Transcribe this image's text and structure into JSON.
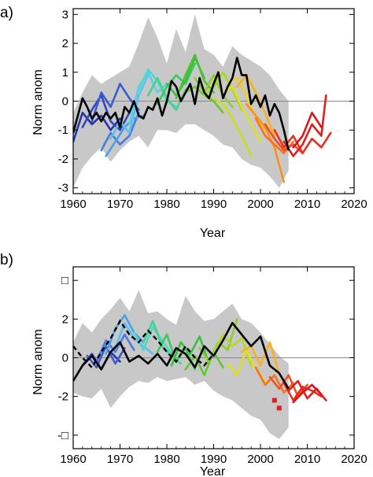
{
  "chart_data": [
    {
      "type": "line",
      "panel_label": "a)",
      "xlabel": "Year",
      "ylabel": "Norm anom",
      "xlim": [
        1960,
        2020
      ],
      "ylim": [
        -3.2,
        3.2
      ],
      "xticks": [
        1960,
        1970,
        1980,
        1990,
        2000,
        2010,
        2020
      ],
      "yticks": [
        -3,
        -2,
        -1,
        0,
        1,
        2,
        3
      ],
      "zero_line": true,
      "envelope": {
        "color": "#c8c8c8",
        "x": [
          1960,
          1962,
          1964,
          1966,
          1968,
          1970,
          1972,
          1974,
          1976,
          1978,
          1980,
          1982,
          1984,
          1986,
          1988,
          1990,
          1992,
          1994,
          1996,
          1998,
          2000,
          2002,
          2004,
          2006
        ],
        "upper": [
          -0.4,
          0.3,
          0.9,
          0.6,
          0.8,
          1.0,
          1.2,
          2.0,
          2.9,
          2.2,
          1.3,
          2.5,
          1.7,
          3.0,
          1.8,
          1.6,
          1.2,
          1.9,
          1.6,
          1.4,
          1.2,
          0.9,
          0.4,
          0.0
        ],
        "lower": [
          -3.0,
          -2.3,
          -1.9,
          -1.6,
          -2.1,
          -1.7,
          -1.4,
          -1.2,
          -1.6,
          -1.0,
          -1.0,
          -1.1,
          -0.8,
          -0.8,
          -1.0,
          -1.2,
          -1.5,
          -1.6,
          -2.0,
          -2.2,
          -2.3,
          -2.6,
          -3.0,
          -2.4
        ]
      },
      "ensemble_series": [
        {
          "color": "#2a35a8",
          "x": [
            1960,
            1962,
            1964,
            1966,
            1968,
            1970
          ],
          "values": [
            -1.4,
            -0.4,
            -0.8,
            -0.5,
            -1.0,
            -0.6
          ]
        },
        {
          "color": "#3047c0",
          "x": [
            1962,
            1964,
            1966,
            1968,
            1970,
            1972
          ],
          "values": [
            -0.9,
            -0.3,
            0.2,
            -0.7,
            -1.0,
            -0.4
          ]
        },
        {
          "color": "#3b5bd0",
          "x": [
            1964,
            1966,
            1968,
            1970,
            1972,
            1974
          ],
          "values": [
            -0.7,
            0.3,
            -0.2,
            0.6,
            0.1,
            -0.3
          ]
        },
        {
          "color": "#4a7ae0",
          "x": [
            1966,
            1968,
            1970,
            1972,
            1974
          ],
          "values": [
            -1.7,
            -1.1,
            -1.5,
            -1.2,
            -0.4
          ]
        },
        {
          "color": "#4aa0e8",
          "x": [
            1967,
            1969,
            1971,
            1973,
            1975
          ],
          "values": [
            -1.9,
            -1.4,
            -0.9,
            -0.6,
            -0.5
          ]
        },
        {
          "color": "#5bc0f0",
          "x": [
            1968,
            1970,
            1972,
            1974,
            1976
          ],
          "values": [
            -1.3,
            -0.7,
            -1.1,
            0.2,
            0.9
          ]
        },
        {
          "color": "#5ad0e8",
          "x": [
            1972,
            1974,
            1976,
            1978,
            1980
          ],
          "values": [
            -0.8,
            0.5,
            1.0,
            0.3,
            0.6
          ]
        },
        {
          "color": "#50d8c8",
          "x": [
            1974,
            1976,
            1978,
            1980,
            1982
          ],
          "values": [
            0.4,
            1.1,
            0.7,
            0.0,
            -0.2
          ]
        },
        {
          "color": "#48d090",
          "x": [
            1976,
            1978,
            1980,
            1982,
            1984
          ],
          "values": [
            0.2,
            0.8,
            0.1,
            -0.3,
            0.4
          ]
        },
        {
          "color": "#40c860",
          "x": [
            1978,
            1980,
            1982,
            1984,
            1986
          ],
          "values": [
            -0.1,
            0.5,
            0.9,
            0.6,
            1.3
          ]
        },
        {
          "color": "#38c040",
          "x": [
            1980,
            1982,
            1984,
            1986,
            1988
          ],
          "values": [
            0.6,
            0.2,
            0.7,
            1.5,
            0.8
          ]
        },
        {
          "color": "#50c030",
          "x": [
            1982,
            1984,
            1986,
            1988,
            1990
          ],
          "values": [
            0.1,
            0.9,
            1.6,
            0.7,
            0.3
          ]
        },
        {
          "color": "#70c828",
          "x": [
            1984,
            1986,
            1988,
            1990,
            1992
          ],
          "values": [
            0.3,
            0.5,
            0.2,
            0.0,
            -0.4
          ]
        },
        {
          "color": "#8cd020",
          "x": [
            1986,
            1988,
            1990,
            1992,
            1994
          ],
          "values": [
            0.8,
            0.3,
            0.9,
            0.2,
            -0.2
          ]
        },
        {
          "color": "#a8d820",
          "x": [
            1988,
            1990,
            1992,
            1994,
            1996
          ],
          "values": [
            0.2,
            0.5,
            1.0,
            0.4,
            -0.3
          ]
        },
        {
          "color": "#c8e020",
          "x": [
            1990,
            1992,
            1994,
            1996,
            1998
          ],
          "values": [
            0.1,
            -0.1,
            -0.6,
            -1.2,
            -1.9
          ]
        },
        {
          "color": "#e0e020",
          "x": [
            1992,
            1994,
            1996,
            1998,
            2000
          ],
          "values": [
            0.3,
            0.5,
            -0.2,
            -0.8,
            -1.4
          ]
        },
        {
          "color": "#f0d020",
          "x": [
            1993,
            1995,
            1997,
            1999,
            2001
          ],
          "values": [
            0.6,
            0.8,
            0.2,
            -0.6,
            -1.0
          ]
        },
        {
          "color": "#f8b020",
          "x": [
            1995,
            1997,
            1999,
            2001,
            2003
          ],
          "values": [
            0.5,
            0.9,
            0.3,
            -0.4,
            -1.2
          ]
        },
        {
          "color": "#f89020",
          "x": [
            1997,
            1999,
            2001,
            2003,
            2005
          ],
          "values": [
            -0.1,
            -0.5,
            -0.9,
            -1.6,
            -2.8
          ]
        },
        {
          "color": "#f87020",
          "x": [
            1999,
            2001,
            2003,
            2005,
            2007
          ],
          "values": [
            -0.6,
            -1.2,
            -1.5,
            -1.8,
            -1.4
          ]
        },
        {
          "color": "#f05020",
          "x": [
            2001,
            2003,
            2005,
            2007,
            2009
          ],
          "values": [
            -0.8,
            -1.3,
            -1.7,
            -1.5,
            -1.8
          ]
        },
        {
          "color": "#e83020",
          "x": [
            2003,
            2005,
            2007,
            2009,
            2011,
            2013,
            2015
          ],
          "values": [
            -1.0,
            -1.6,
            -1.2,
            -1.8,
            -1.3,
            -1.6,
            -1.1
          ]
        },
        {
          "color": "#e02020",
          "x": [
            2005,
            2007,
            2009,
            2011,
            2013,
            2014
          ],
          "values": [
            -1.4,
            -1.9,
            -1.5,
            -0.8,
            -1.2,
            0.2
          ]
        },
        {
          "color": "#d81818",
          "x": [
            2007,
            2009,
            2011,
            2013
          ],
          "values": [
            -1.6,
            -1.2,
            -0.4,
            -0.9
          ]
        }
      ],
      "observed": {
        "color": "#000000",
        "dashed": false,
        "x": [
          1960,
          1961,
          1962,
          1963,
          1964,
          1965,
          1966,
          1967,
          1968,
          1969,
          1970,
          1971,
          1972,
          1973,
          1974,
          1975,
          1976,
          1977,
          1978,
          1979,
          1980,
          1981,
          1982,
          1983,
          1984,
          1985,
          1986,
          1987,
          1988,
          1989,
          1990,
          1991,
          1992,
          1993,
          1994,
          1995,
          1996,
          1997,
          1998,
          1999,
          2000,
          2001,
          2002,
          2003,
          2004,
          2005,
          2006
        ],
        "values": [
          -1.1,
          -0.5,
          0.1,
          -0.2,
          -0.6,
          -0.4,
          -0.7,
          -0.4,
          -0.6,
          -0.4,
          -0.9,
          -0.2,
          -0.4,
          0.0,
          -0.5,
          -0.6,
          -0.2,
          -0.3,
          0.1,
          -0.5,
          0.0,
          0.7,
          0.5,
          0.0,
          0.3,
          0.6,
          -0.1,
          0.8,
          0.3,
          0.1,
          0.6,
          1.0,
          0.1,
          0.5,
          0.8,
          1.5,
          0.9,
          0.9,
          -0.1,
          0.2,
          -0.2,
          0.2,
          -0.5,
          -0.1,
          -0.4,
          -1.0,
          -1.7
        ]
      }
    },
    {
      "type": "line",
      "panel_label": "b)",
      "xlabel": "Year",
      "ylabel": "Norm anom",
      "xlim": [
        1960,
        2020
      ],
      "ylim": [
        -4.7,
        4.7
      ],
      "xticks": [
        1960,
        1970,
        1980,
        1990,
        2000,
        2010,
        2020
      ],
      "yticks": [
        -4,
        -2,
        0,
        2,
        4
      ],
      "ytick_labels": [
        "-□",
        "-2",
        "0",
        "2",
        "□"
      ],
      "zero_line": true,
      "envelope": {
        "color": "#c8c8c8",
        "x": [
          1960,
          1962,
          1964,
          1966,
          1968,
          1970,
          1972,
          1974,
          1976,
          1978,
          1980,
          1982,
          1984,
          1986,
          1988,
          1990,
          1992,
          1994,
          1996,
          1998,
          2000,
          2002,
          2004,
          2006
        ],
        "upper": [
          0.8,
          1.8,
          1.3,
          2.0,
          2.5,
          3.1,
          2.4,
          3.5,
          2.3,
          2.4,
          2.0,
          1.7,
          3.2,
          2.4,
          1.9,
          2.0,
          2.4,
          2.8,
          2.0,
          1.8,
          1.3,
          0.7,
          0.1,
          -0.3
        ],
        "lower": [
          -1.8,
          -2.0,
          -2.1,
          -1.6,
          -2.6,
          -2.0,
          -1.5,
          -1.2,
          -1.3,
          -1.0,
          -1.2,
          -1.1,
          -1.0,
          -1.4,
          -1.2,
          -1.7,
          -2.0,
          -2.2,
          -2.6,
          -3.0,
          -3.2,
          -3.9,
          -4.2,
          -3.6
        ]
      },
      "ensemble_series": [
        {
          "color": "#2a35a8",
          "x": [
            1962,
            1964,
            1966,
            1968,
            1970
          ],
          "values": [
            -0.4,
            0.2,
            -0.6,
            0.3,
            -0.2
          ]
        },
        {
          "color": "#3b5bd0",
          "x": [
            1963,
            1965,
            1967,
            1969,
            1971
          ],
          "values": [
            0.1,
            -0.5,
            0.6,
            -0.3,
            0.5
          ]
        },
        {
          "color": "#4a7ae0",
          "x": [
            1965,
            1967,
            1969,
            1971,
            1973
          ],
          "values": [
            -0.2,
            0.9,
            0.3,
            1.2,
            0.4
          ]
        },
        {
          "color": "#4aa0e8",
          "x": [
            1967,
            1969,
            1971,
            1973,
            1975
          ],
          "values": [
            0.2,
            1.5,
            2.2,
            1.3,
            0.8
          ]
        },
        {
          "color": "#5bc0f0",
          "x": [
            1969,
            1971,
            1973,
            1975,
            1977
          ],
          "values": [
            0.5,
            1.8,
            1.0,
            0.6,
            0.2
          ]
        },
        {
          "color": "#50d8c8",
          "x": [
            1973,
            1975,
            1977,
            1979,
            1981
          ],
          "values": [
            1.3,
            0.4,
            1.6,
            0.9,
            0.2
          ]
        },
        {
          "color": "#48d090",
          "x": [
            1975,
            1977,
            1979,
            1981,
            1983
          ],
          "values": [
            0.8,
            1.9,
            0.6,
            0.1,
            -0.3
          ]
        },
        {
          "color": "#40c860",
          "x": [
            1978,
            1980,
            1982,
            1984,
            1986
          ],
          "values": [
            0.3,
            1.2,
            -0.2,
            0.5,
            -0.6
          ]
        },
        {
          "color": "#38c040",
          "x": [
            1981,
            1983,
            1985,
            1987,
            1989
          ],
          "values": [
            -0.4,
            0.8,
            0.2,
            1.1,
            -0.3
          ]
        },
        {
          "color": "#60c830",
          "x": [
            1984,
            1986,
            1988,
            1990,
            1992
          ],
          "values": [
            -0.6,
            0.1,
            -0.9,
            0.3,
            -0.5
          ]
        },
        {
          "color": "#8cd020",
          "x": [
            1987,
            1989,
            1991,
            1993,
            1995
          ],
          "values": [
            0.5,
            -0.2,
            0.8,
            0.4,
            2.0
          ]
        },
        {
          "color": "#b8d820",
          "x": [
            1990,
            1992,
            1994,
            1996,
            1998
          ],
          "values": [
            0.2,
            1.2,
            0.6,
            1.0,
            -0.4
          ]
        },
        {
          "color": "#e0e020",
          "x": [
            1993,
            1995,
            1997,
            1999,
            2001
          ],
          "values": [
            -0.3,
            -0.9,
            0.4,
            -0.6,
            -1.2
          ]
        },
        {
          "color": "#f8b020",
          "x": [
            1996,
            1998,
            2000,
            2002,
            2004
          ],
          "values": [
            0.3,
            0.6,
            -0.4,
            0.8,
            -0.8
          ]
        },
        {
          "color": "#f87020",
          "x": [
            1999,
            2001,
            2003,
            2005,
            2007
          ],
          "values": [
            -0.5,
            -1.4,
            -0.9,
            -1.8,
            -1.3
          ]
        },
        {
          "color": "#f05020",
          "x": [
            2002,
            2004,
            2006,
            2008,
            2010
          ],
          "values": [
            -1.0,
            -1.6,
            -0.9,
            -2.0,
            -1.4
          ]
        },
        {
          "color": "#e83020",
          "x": [
            2005,
            2007,
            2009,
            2011,
            2013
          ],
          "values": [
            -1.3,
            -2.2,
            -1.5,
            -1.7,
            -2.0
          ]
        },
        {
          "color": "#e02020",
          "x": [
            2006,
            2008,
            2010,
            2012,
            2014
          ],
          "values": [
            -1.7,
            -1.2,
            -2.1,
            -1.6,
            -2.2
          ]
        },
        {
          "color": "#d81818",
          "x": [
            2007,
            2009,
            2011,
            2013
          ],
          "values": [
            -2.3,
            -1.8,
            -1.4,
            -1.9
          ]
        }
      ],
      "observed": {
        "color": "#000000",
        "dashed": false,
        "x": [
          1960,
          1962,
          1964,
          1966,
          1968,
          1970,
          1972,
          1974,
          1976,
          1978,
          1980,
          1982,
          1984,
          1986,
          1988,
          1990,
          1992,
          1994,
          1996,
          1998,
          2000,
          2002,
          2004,
          2006
        ],
        "values": [
          -1.2,
          -0.4,
          0.1,
          -0.6,
          0.3,
          0.8,
          -0.2,
          0.1,
          -0.3,
          0.2,
          -0.4,
          0.5,
          0.2,
          -0.5,
          0.6,
          0.1,
          0.9,
          1.8,
          1.2,
          0.6,
          1.1,
          -0.4,
          -0.8,
          -1.6
        ]
      },
      "observed_dashed": {
        "color": "#000000",
        "dashed": true,
        "x": [
          1960,
          1962,
          1964,
          1966,
          1968,
          1970,
          1972,
          1974,
          1976,
          1978,
          1980,
          1982,
          1984,
          1986,
          1988,
          1990
        ],
        "values": [
          0.6,
          0.0,
          -0.5,
          0.3,
          1.0,
          1.9,
          1.2,
          0.8,
          1.4,
          0.9,
          0.3,
          -0.2,
          0.6,
          0.0,
          -0.4,
          0.2
        ]
      },
      "markers": {
        "color": "#e02020",
        "x": [
          2003,
          2004
        ],
        "values": [
          -2.2,
          -2.6
        ]
      }
    }
  ]
}
